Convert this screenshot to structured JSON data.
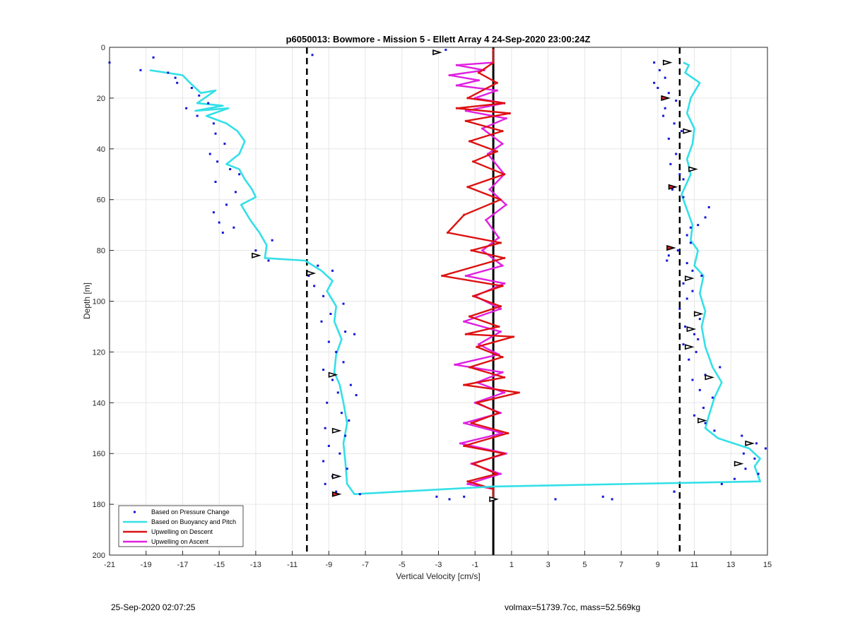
{
  "chart_data": {
    "type": "line",
    "title": "p6050013: Bowmore - Mission 5 - Ellett Array 4 24-Sep-2020 23:00:24Z",
    "xlabel": "Vertical Velocity [cm/s]",
    "ylabel": "Depth [m]",
    "xlim": [
      -21,
      15
    ],
    "ylim": [
      0,
      200
    ],
    "y_reversed": true,
    "grid": true,
    "legend_position": "bottom-left",
    "x_ticks": [
      "-21",
      "-19",
      "-17",
      "-15",
      "-13",
      "-11",
      "-9",
      "-7",
      "-5",
      "-3",
      "-1",
      "1",
      "3",
      "5",
      "7",
      "9",
      "11",
      "13",
      "15"
    ],
    "y_ticks": [
      "0",
      "20",
      "40",
      "60",
      "80",
      "100",
      "120",
      "140",
      "160",
      "180",
      "200"
    ],
    "reference_lines": {
      "dashed_x": [
        -10.2,
        10.2
      ],
      "solid_x": [
        0
      ]
    },
    "series": [
      {
        "name": "Based on Buoyancy and Pitch",
        "color": "#33e0e8",
        "style": "line",
        "points": [
          [
            -18.8,
            9
          ],
          [
            -17,
            11
          ],
          [
            -16.6,
            14
          ],
          [
            -16,
            18
          ],
          [
            -15.2,
            17
          ],
          [
            -16.2,
            22
          ],
          [
            -14.8,
            23
          ],
          [
            -16.3,
            25
          ],
          [
            -14.5,
            24
          ],
          [
            -15.7,
            27
          ],
          [
            -14.6,
            30
          ],
          [
            -14,
            33
          ],
          [
            -13.6,
            37
          ],
          [
            -13.9,
            42
          ],
          [
            -14.6,
            46
          ],
          [
            -13.9,
            48
          ],
          [
            -13.6,
            52
          ],
          [
            -13.2,
            56
          ],
          [
            -13,
            59
          ],
          [
            -13.8,
            62
          ],
          [
            -13.3,
            68
          ],
          [
            -12.8,
            73
          ],
          [
            -12.4,
            78
          ],
          [
            -12.5,
            83
          ],
          [
            -10.3,
            84
          ],
          [
            -9.4,
            88
          ],
          [
            -8.8,
            92
          ],
          [
            -9.1,
            96
          ],
          [
            -8.6,
            102
          ],
          [
            -8.7,
            108
          ],
          [
            -8.3,
            115
          ],
          [
            -8.6,
            121
          ],
          [
            -8.7,
            128
          ],
          [
            -8.4,
            133
          ],
          [
            -8.2,
            140
          ],
          [
            -8.0,
            148
          ],
          [
            -8.2,
            156
          ],
          [
            -8.1,
            163
          ],
          [
            -8.0,
            172
          ],
          [
            -7.6,
            176
          ],
          [
            0,
            173
          ],
          [
            14.6,
            171
          ],
          [
            14.3,
            165
          ],
          [
            14.6,
            162
          ],
          [
            14.0,
            158
          ],
          [
            12.3,
            154
          ],
          [
            11.6,
            150
          ],
          [
            11.8,
            145
          ],
          [
            12.1,
            138
          ],
          [
            12.5,
            132
          ],
          [
            12.0,
            126
          ],
          [
            11.6,
            118
          ],
          [
            11.4,
            110
          ],
          [
            11.6,
            104
          ],
          [
            11.3,
            97
          ],
          [
            11.5,
            90
          ],
          [
            11.0,
            86
          ],
          [
            11.2,
            80
          ],
          [
            10.8,
            76
          ],
          [
            10.9,
            70
          ],
          [
            10.6,
            64
          ],
          [
            10.3,
            58
          ],
          [
            10.8,
            50
          ],
          [
            10.6,
            44
          ],
          [
            10.9,
            38
          ],
          [
            11.0,
            32
          ],
          [
            10.6,
            26
          ],
          [
            10.8,
            20
          ],
          [
            11.3,
            14
          ],
          [
            10.5,
            10
          ],
          [
            10.7,
            7
          ],
          [
            10.4,
            6
          ]
        ]
      },
      {
        "name": "Upwelling on Descent",
        "color": "#dd1111",
        "style": "line",
        "points": [
          [
            0,
            1
          ],
          [
            0,
            6
          ],
          [
            -0.8,
            10
          ],
          [
            0.2,
            14
          ],
          [
            -1.4,
            20
          ],
          [
            0.6,
            22
          ],
          [
            -2,
            24
          ],
          [
            0.9,
            26
          ],
          [
            -1.5,
            29
          ],
          [
            0.5,
            33
          ],
          [
            -1.3,
            37
          ],
          [
            0.2,
            41
          ],
          [
            -1.1,
            45
          ],
          [
            0.6,
            50
          ],
          [
            -1.4,
            55
          ],
          [
            0.4,
            60
          ],
          [
            -1.6,
            66
          ],
          [
            -2.5,
            73
          ],
          [
            0.4,
            77
          ],
          [
            -1.2,
            80
          ],
          [
            0.6,
            83
          ],
          [
            -2.8,
            90
          ],
          [
            0.5,
            94
          ],
          [
            -1.1,
            98
          ],
          [
            0.4,
            102
          ],
          [
            -1.3,
            106
          ],
          [
            0.3,
            110
          ],
          [
            -1.5,
            113
          ],
          [
            1.1,
            114
          ],
          [
            -0.9,
            118
          ],
          [
            0.5,
            122
          ],
          [
            -1.3,
            126
          ],
          [
            0.6,
            130
          ],
          [
            -1.6,
            133
          ],
          [
            1.4,
            136
          ],
          [
            -0.9,
            140
          ],
          [
            0.3,
            144
          ],
          [
            -1.2,
            148
          ],
          [
            0.8,
            152
          ],
          [
            -1.6,
            157
          ],
          [
            0.6,
            160
          ],
          [
            -1.1,
            164
          ],
          [
            0.2,
            168
          ],
          [
            -1.4,
            171
          ],
          [
            0,
            174
          ],
          [
            0,
            178
          ]
        ]
      },
      {
        "name": "Upwelling on Ascent",
        "color": "#e020e0",
        "style": "line",
        "points": [
          [
            0,
            6
          ],
          [
            -2,
            7
          ],
          [
            -0.5,
            9
          ],
          [
            -2.4,
            11
          ],
          [
            -0.8,
            13
          ],
          [
            -2,
            15
          ],
          [
            0.2,
            17
          ],
          [
            -1,
            20
          ],
          [
            0.6,
            22
          ],
          [
            -1.5,
            25
          ],
          [
            0.7,
            28
          ],
          [
            -0.6,
            32
          ],
          [
            0.5,
            38
          ],
          [
            -0.3,
            42
          ],
          [
            0.6,
            50
          ],
          [
            -0.2,
            56
          ],
          [
            0.7,
            62
          ],
          [
            -0.4,
            68
          ],
          [
            0.3,
            75
          ],
          [
            -0.6,
            80
          ],
          [
            0.5,
            86
          ],
          [
            -1.5,
            90
          ],
          [
            0.6,
            93
          ],
          [
            -1.0,
            98
          ],
          [
            0.4,
            103
          ],
          [
            -1.6,
            108
          ],
          [
            0.4,
            112
          ],
          [
            -0.8,
            117
          ],
          [
            0.3,
            121
          ],
          [
            -2.1,
            125
          ],
          [
            0.5,
            128
          ],
          [
            -0.9,
            132
          ],
          [
            0.6,
            136
          ],
          [
            -1.0,
            140
          ],
          [
            0.4,
            144
          ],
          [
            -1.6,
            148
          ],
          [
            0.5,
            152
          ],
          [
            -1.8,
            156
          ],
          [
            0.7,
            160
          ],
          [
            -1.2,
            164
          ],
          [
            0.4,
            168
          ],
          [
            -1.4,
            172
          ],
          [
            0,
            174
          ]
        ]
      },
      {
        "name": "Based on Pressure Change",
        "color": "#1414d8",
        "style": "dots",
        "points": [
          [
            -21,
            6
          ],
          [
            -18.6,
            4
          ],
          [
            -19.3,
            9
          ],
          [
            -17.8,
            10
          ],
          [
            -17.4,
            12
          ],
          [
            -17.3,
            14
          ],
          [
            -16.5,
            16
          ],
          [
            -16.1,
            19
          ],
          [
            -15.6,
            22
          ],
          [
            -16.8,
            24
          ],
          [
            -16.2,
            27
          ],
          [
            -15.3,
            30
          ],
          [
            -15.2,
            34
          ],
          [
            -14.7,
            38
          ],
          [
            -15.5,
            42
          ],
          [
            -15.1,
            45
          ],
          [
            -14.4,
            48
          ],
          [
            -13.9,
            50
          ],
          [
            -15.2,
            53
          ],
          [
            -14.1,
            57
          ],
          [
            -14.6,
            62
          ],
          [
            -15.3,
            65
          ],
          [
            -15.0,
            69
          ],
          [
            -14.2,
            71
          ],
          [
            -14.8,
            73
          ],
          [
            -12.1,
            76
          ],
          [
            -13,
            80
          ],
          [
            -12.3,
            84
          ],
          [
            -9.6,
            86
          ],
          [
            -8.8,
            88
          ],
          [
            -10.1,
            90
          ],
          [
            -9.8,
            94
          ],
          [
            -9.3,
            98
          ],
          [
            -8.2,
            101
          ],
          [
            -8.9,
            105
          ],
          [
            -9.4,
            108
          ],
          [
            -8.1,
            112
          ],
          [
            -7.6,
            113
          ],
          [
            -9.0,
            116
          ],
          [
            -8.6,
            120
          ],
          [
            -8.2,
            124
          ],
          [
            -9.3,
            127
          ],
          [
            -8.8,
            131
          ],
          [
            -7.8,
            133
          ],
          [
            -8.5,
            136
          ],
          [
            -7.5,
            137
          ],
          [
            -9.1,
            140
          ],
          [
            -8.3,
            144
          ],
          [
            -7.9,
            147
          ],
          [
            -9.2,
            150
          ],
          [
            -8.1,
            153
          ],
          [
            -9.0,
            157
          ],
          [
            -8.4,
            160
          ],
          [
            -9.3,
            163
          ],
          [
            -8.0,
            166
          ],
          [
            -8.8,
            169
          ],
          [
            -9.2,
            172
          ],
          [
            -7.3,
            176
          ],
          [
            -8.6,
            175
          ],
          [
            -3.1,
            177
          ],
          [
            -2.4,
            178
          ],
          [
            -1.6,
            177
          ],
          [
            3.4,
            178
          ],
          [
            6.0,
            177
          ],
          [
            6.5,
            178
          ],
          [
            9.9,
            175
          ],
          [
            -9.9,
            3
          ],
          [
            -2.6,
            1
          ],
          [
            8.8,
            6
          ],
          [
            9.1,
            9
          ],
          [
            9.4,
            12
          ],
          [
            8.8,
            14
          ],
          [
            9.0,
            16
          ],
          [
            9.6,
            18
          ],
          [
            10.0,
            21
          ],
          [
            9.4,
            24
          ],
          [
            9.3,
            27
          ],
          [
            9.9,
            30
          ],
          [
            10.3,
            33
          ],
          [
            9.6,
            36
          ],
          [
            10.0,
            42
          ],
          [
            9.7,
            46
          ],
          [
            10.2,
            50
          ],
          [
            10.4,
            52
          ],
          [
            9.8,
            56
          ],
          [
            10.4,
            59
          ],
          [
            11.8,
            63
          ],
          [
            11.6,
            67
          ],
          [
            11.2,
            70
          ],
          [
            10.6,
            74
          ],
          [
            10.8,
            77
          ],
          [
            10.1,
            80
          ],
          [
            9.6,
            82
          ],
          [
            9.5,
            84
          ],
          [
            10.6,
            85
          ],
          [
            10.9,
            88
          ],
          [
            11.4,
            90
          ],
          [
            10.4,
            93
          ],
          [
            10.9,
            96
          ],
          [
            10.6,
            99
          ],
          [
            10.2,
            103
          ],
          [
            11.3,
            107
          ],
          [
            10.5,
            110
          ],
          [
            11.0,
            113
          ],
          [
            10.4,
            117
          ],
          [
            11.1,
            120
          ],
          [
            10.7,
            123
          ],
          [
            12.4,
            126
          ],
          [
            11.6,
            129
          ],
          [
            10.9,
            131
          ],
          [
            11.3,
            135
          ],
          [
            12.0,
            138
          ],
          [
            11.5,
            142
          ],
          [
            11.0,
            145
          ],
          [
            11.6,
            148
          ],
          [
            12.1,
            151
          ],
          [
            13.6,
            153
          ],
          [
            14.4,
            156
          ],
          [
            14.9,
            158
          ],
          [
            13.7,
            160
          ],
          [
            14.3,
            162
          ],
          [
            13.8,
            166
          ],
          [
            14.5,
            168
          ],
          [
            13.2,
            170
          ],
          [
            12.5,
            172
          ],
          [
            9.9,
            175
          ],
          [
            11.2,
            115
          ],
          [
            10.8,
            71
          ]
        ]
      }
    ],
    "markers": {
      "open_triangles": [
        [
          -3.1,
          2
        ],
        [
          9.5,
          6
        ],
        [
          10.6,
          33
        ],
        [
          10.9,
          48
        ],
        [
          -13.0,
          82
        ],
        [
          -10.0,
          89
        ],
        [
          10.7,
          91
        ],
        [
          11.2,
          105
        ],
        [
          10.8,
          111
        ],
        [
          10.7,
          118
        ],
        [
          -8.8,
          129
        ],
        [
          11.8,
          130
        ],
        [
          -8.6,
          151
        ],
        [
          11.4,
          147
        ],
        [
          14.0,
          156
        ],
        [
          13.4,
          164
        ],
        [
          -8.6,
          169
        ],
        [
          0,
          178
        ]
      ],
      "filled_triangles": [
        [
          9.4,
          20
        ],
        [
          9.8,
          55
        ],
        [
          9.7,
          79
        ],
        [
          -8.6,
          176
        ]
      ]
    },
    "legend": [
      "Based on Pressure Change",
      "Based on Buoyancy and Pitch",
      "Upwelling on Descent",
      "Upwelling on Ascent"
    ]
  },
  "footer": {
    "left": "25-Sep-2020 02:07:25",
    "right": "volmax=51739.7cc, mass=52.569kg"
  }
}
